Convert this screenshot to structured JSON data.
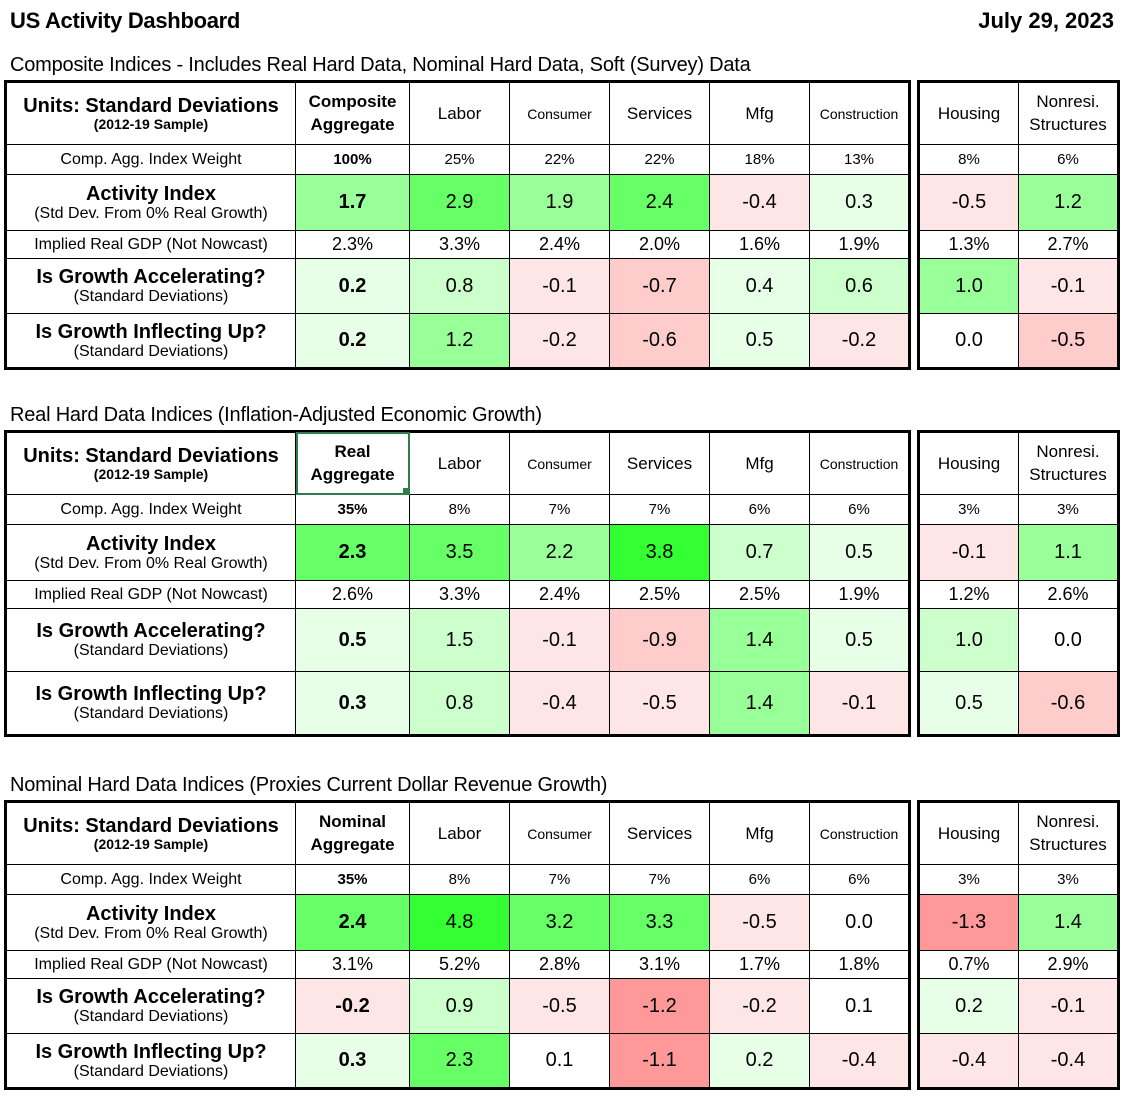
{
  "title": "US Activity Dashboard",
  "date": "July 29, 2023",
  "row_labels": {
    "units_main": "Units: Standard Deviations",
    "units_sub": "(2012-19 Sample)",
    "weight": "Comp. Agg. Index Weight",
    "activity_main": "Activity Index",
    "activity_sub": "(Std Dev. From 0% Real Growth)",
    "gdp": "Implied Real GDP (Not Nowcast)",
    "accel_main": "Is Growth Accelerating?",
    "accel_sub": "(Standard Deviations)",
    "inflect_main": "Is Growth Inflecting Up?",
    "inflect_sub": "(Standard Deviations)"
  },
  "columns": {
    "labor": "Labor",
    "consumer": "Consumer",
    "services": "Services",
    "mfg": "Mfg",
    "construction": "Construction",
    "housing": "Housing",
    "nonres_1": "Nonresi.",
    "nonres_2": "Structures"
  },
  "colors": {
    "strong_green": "#33ff33",
    "mid_green": "#66ff66",
    "light_green": "#99ff99",
    "pale_green": "#ccffcc",
    "faint_green": "#e6ffe6",
    "white": "#ffffff",
    "faint_red": "#ffe6e6",
    "pale_red": "#ffcccc",
    "light_red": "#ff9999"
  },
  "chart_data": {
    "type": "table",
    "sections": [
      {
        "label": "Composite Indices - Includes Real Hard Data, Nominal Hard Data, Soft (Survey) Data",
        "agg_1": "Composite",
        "agg_2": "Aggregate",
        "weights": [
          "100%",
          "25%",
          "22%",
          "22%",
          "18%",
          "13%",
          "8%",
          "6%"
        ],
        "activity": [
          "1.7",
          "2.9",
          "1.9",
          "2.4",
          "-0.4",
          "0.3",
          "-0.5",
          "1.2"
        ],
        "gdp": [
          "2.3%",
          "3.3%",
          "2.4%",
          "2.0%",
          "1.6%",
          "1.9%",
          "1.3%",
          "2.7%"
        ],
        "accel": [
          "0.2",
          "0.8",
          "-0.1",
          "-0.7",
          "0.4",
          "0.6",
          "1.0",
          "-0.1"
        ],
        "inflect": [
          "0.2",
          "1.2",
          "-0.2",
          "-0.6",
          "0.5",
          "-0.2",
          "0.0",
          "-0.5"
        ]
      },
      {
        "label": "Real Hard Data Indices (Inflation-Adjusted Economic Growth)",
        "agg_1": "Real",
        "agg_2": "Aggregate",
        "weights": [
          "35%",
          "8%",
          "7%",
          "7%",
          "6%",
          "6%",
          "3%",
          "3%"
        ],
        "activity": [
          "2.3",
          "3.5",
          "2.2",
          "3.8",
          "0.7",
          "0.5",
          "-0.1",
          "1.1"
        ],
        "gdp": [
          "2.6%",
          "3.3%",
          "2.4%",
          "2.5%",
          "2.5%",
          "1.9%",
          "1.2%",
          "2.6%"
        ],
        "accel": [
          "0.5",
          "1.5",
          "-0.1",
          "-0.9",
          "1.4",
          "0.5",
          "1.0",
          "0.0"
        ],
        "inflect": [
          "0.3",
          "0.8",
          "-0.4",
          "-0.5",
          "1.4",
          "-0.1",
          "0.5",
          "-0.6"
        ]
      },
      {
        "label": "Nominal Hard Data Indices (Proxies Current Dollar Revenue Growth)",
        "agg_1": "Nominal",
        "agg_2": "Aggregate",
        "weights": [
          "35%",
          "8%",
          "7%",
          "7%",
          "6%",
          "6%",
          "3%",
          "3%"
        ],
        "activity": [
          "2.4",
          "4.8",
          "3.2",
          "3.3",
          "-0.5",
          "0.0",
          "-1.3",
          "1.4"
        ],
        "gdp": [
          "3.1%",
          "5.2%",
          "2.8%",
          "3.1%",
          "1.7%",
          "1.8%",
          "0.7%",
          "2.9%"
        ],
        "accel": [
          "-0.2",
          "0.9",
          "-0.5",
          "-1.2",
          "-0.2",
          "0.1",
          "0.2",
          "-0.1"
        ],
        "inflect": [
          "0.3",
          "2.3",
          "0.1",
          "-1.1",
          "0.2",
          "-0.4",
          "-0.4",
          "-0.4"
        ]
      }
    ],
    "cell_colors": [
      {
        "activity": [
          "light_green",
          "mid_green",
          "light_green",
          "mid_green",
          "faint_red",
          "faint_green",
          "faint_red",
          "light_green"
        ],
        "accel": [
          "faint_green",
          "pale_green",
          "faint_red",
          "pale_red",
          "faint_green",
          "pale_green",
          "light_green",
          "faint_red"
        ],
        "inflect": [
          "faint_green",
          "light_green",
          "faint_red",
          "pale_red",
          "faint_green",
          "faint_red",
          "white",
          "pale_red"
        ]
      },
      {
        "activity": [
          "mid_green",
          "mid_green",
          "light_green",
          "strong_green",
          "pale_green",
          "faint_green",
          "faint_red",
          "light_green"
        ],
        "accel": [
          "faint_green",
          "pale_green",
          "faint_red",
          "pale_red",
          "light_green",
          "faint_green",
          "pale_green",
          "white"
        ],
        "inflect": [
          "faint_green",
          "pale_green",
          "faint_red",
          "faint_red",
          "light_green",
          "faint_red",
          "faint_green",
          "pale_red"
        ]
      },
      {
        "activity": [
          "mid_green",
          "strong_green",
          "mid_green",
          "mid_green",
          "faint_red",
          "white",
          "light_red",
          "light_green"
        ],
        "accel": [
          "faint_red",
          "pale_green",
          "faint_red",
          "light_red",
          "faint_red",
          "white",
          "faint_green",
          "faint_red"
        ],
        "inflect": [
          "faint_green",
          "mid_green",
          "white",
          "light_red",
          "faint_green",
          "faint_red",
          "faint_red",
          "faint_red"
        ]
      }
    ]
  }
}
